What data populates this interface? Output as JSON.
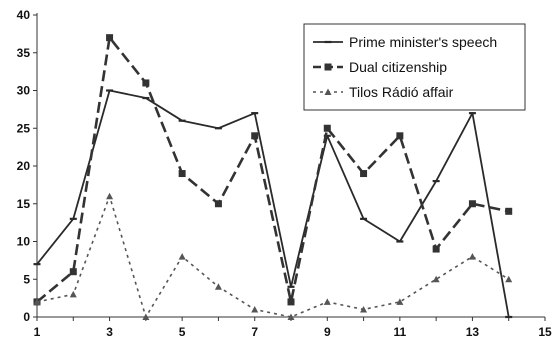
{
  "chart_data": {
    "type": "line",
    "x": [
      1,
      2,
      3,
      4,
      5,
      6,
      7,
      8,
      9,
      10,
      11,
      12,
      13,
      14
    ],
    "series": [
      {
        "name": "Prime minister's speech",
        "values": [
          7,
          13,
          30,
          29,
          26,
          25,
          27,
          4,
          24,
          13,
          10,
          18,
          27,
          0
        ],
        "color": "#2a2a2a",
        "style": "solid",
        "marker": "dash"
      },
      {
        "name": "Dual citizenship",
        "values": [
          2,
          6,
          37,
          31,
          19,
          15,
          24,
          2,
          25,
          19,
          24,
          9,
          15,
          14
        ],
        "color": "#333333",
        "style": "dashed",
        "marker": "square"
      },
      {
        "name": "Tilos Rádió affair",
        "values": [
          2,
          3,
          16,
          0,
          8,
          4,
          1,
          0,
          2,
          1,
          2,
          5,
          8,
          5
        ],
        "color": "#555555",
        "style": "dotted",
        "marker": "triangle"
      }
    ],
    "xlim": [
      1,
      15
    ],
    "ylim": [
      0,
      40
    ],
    "x_ticks": [
      1,
      3,
      5,
      7,
      9,
      11,
      13,
      15
    ],
    "y_ticks": [
      0,
      5,
      10,
      15,
      20,
      25,
      30,
      35,
      40
    ],
    "grid": false,
    "legend_position": "top-right"
  }
}
